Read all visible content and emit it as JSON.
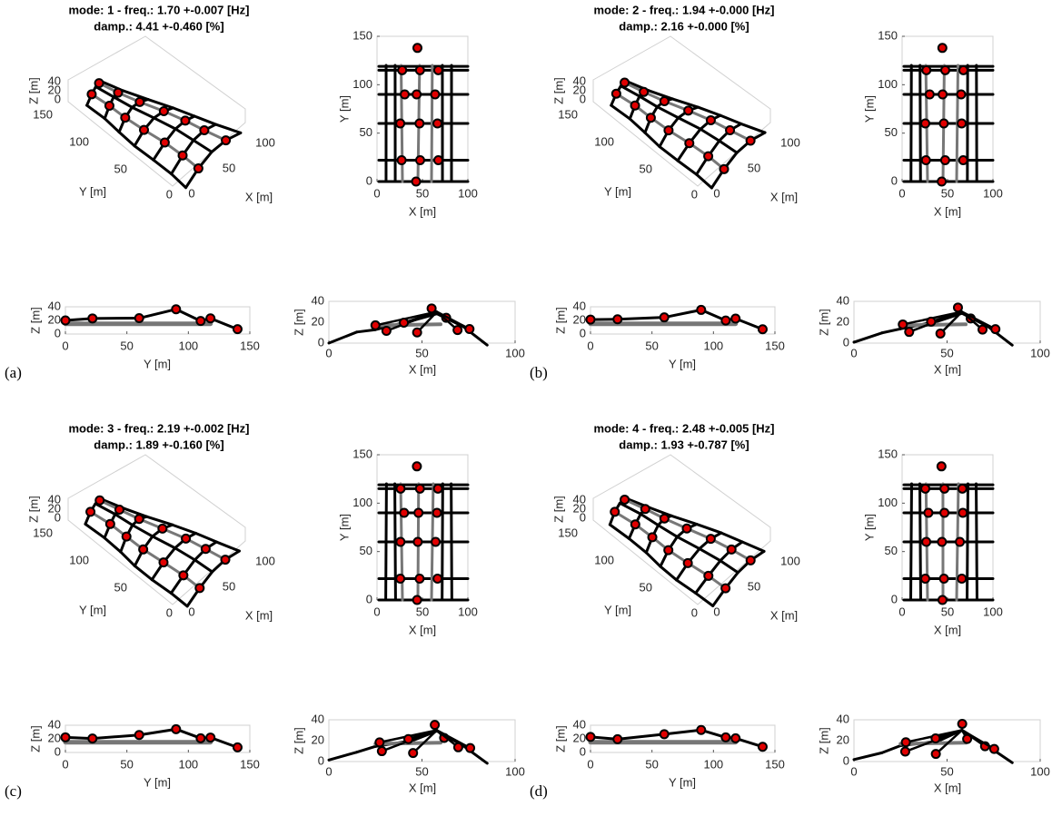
{
  "panels": [
    {
      "label": "(a)",
      "title": [
        "mode: 1 - freq.: 1.70 +-0.007 [Hz]",
        "damp.: 4.41 +-0.460 [%]"
      ],
      "view3d": {
        "xlabel": "X [m]",
        "ylabel": "Y [m]",
        "zlabel": "Z [m]",
        "xticks": [
          0,
          50,
          100
        ],
        "yticks": [
          0,
          50,
          100,
          150
        ],
        "zticks": [
          0,
          20,
          40
        ]
      },
      "plan": {
        "xlabel": "X [m]",
        "ylabel": "Y [m]",
        "xticks": [
          0,
          50,
          100
        ],
        "yticks": [
          0,
          50,
          100,
          150
        ]
      },
      "side_y": {
        "xlabel": "Y [m]",
        "ylabel": "Z [m]",
        "xticks": [
          0,
          50,
          100,
          150
        ],
        "yticks": [
          0,
          20,
          40
        ]
      },
      "side_x": {
        "xlabel": "X [m]",
        "ylabel": "Z [m]",
        "xticks": [
          0,
          50,
          100
        ],
        "yticks": [
          0,
          20,
          40
        ]
      }
    },
    {
      "label": "(b)",
      "title": [
        "mode: 2 - freq.: 1.94 +-0.000 [Hz]",
        "damp.: 2.16 +-0.000 [%]"
      ],
      "view3d": {
        "xlabel": "X [m]",
        "ylabel": "Y [m]",
        "zlabel": "Z [m]",
        "xticks": [
          0,
          50,
          100
        ],
        "yticks": [
          0,
          50,
          100,
          150
        ],
        "zticks": [
          0,
          20,
          40
        ]
      },
      "plan": {
        "xlabel": "X [m]",
        "ylabel": "Y [m]",
        "xticks": [
          0,
          50,
          100
        ],
        "yticks": [
          0,
          50,
          100,
          150
        ]
      },
      "side_y": {
        "xlabel": "Y [m]",
        "ylabel": "Z [m]",
        "xticks": [
          0,
          50,
          100,
          150
        ],
        "yticks": [
          0,
          20,
          40
        ]
      },
      "side_x": {
        "xlabel": "X [m]",
        "ylabel": "Z [m]",
        "xticks": [
          0,
          50,
          100
        ],
        "yticks": [
          0,
          20,
          40
        ]
      }
    },
    {
      "label": "(c)",
      "title": [
        "mode: 3 - freq.: 2.19 +-0.002 [Hz]",
        "damp.: 1.89 +-0.160 [%]"
      ],
      "view3d": {
        "xlabel": "X [m]",
        "ylabel": "Y [m]",
        "zlabel": "Z [m]",
        "xticks": [
          0,
          50,
          100
        ],
        "yticks": [
          0,
          50,
          100,
          150
        ],
        "zticks": [
          0,
          20,
          40
        ]
      },
      "plan": {
        "xlabel": "X [m]",
        "ylabel": "Y [m]",
        "xticks": [
          0,
          50,
          100
        ],
        "yticks": [
          0,
          50,
          100,
          150
        ]
      },
      "side_y": {
        "xlabel": "Y [m]",
        "ylabel": "Z [m]",
        "xticks": [
          0,
          50,
          100,
          150
        ],
        "yticks": [
          0,
          20,
          40
        ]
      },
      "side_x": {
        "xlabel": "X [m]",
        "ylabel": "Z [m]",
        "xticks": [
          0,
          50,
          100
        ],
        "yticks": [
          0,
          20,
          40
        ]
      }
    },
    {
      "label": "(d)",
      "title": [
        "mode: 4 - freq.: 2.48 +-0.005 [Hz]",
        "damp.: 1.93 +-0.787 [%]"
      ],
      "view3d": {
        "xlabel": "X [m]",
        "ylabel": "Y [m]",
        "zlabel": "Z [m]",
        "xticks": [
          0,
          50,
          100
        ],
        "yticks": [
          0,
          50,
          100,
          150
        ],
        "zticks": [
          0,
          20,
          40
        ]
      },
      "plan": {
        "xlabel": "X [m]",
        "ylabel": "Y [m]",
        "xticks": [
          0,
          50,
          100
        ],
        "yticks": [
          0,
          50,
          100,
          150
        ]
      },
      "side_y": {
        "xlabel": "Y [m]",
        "ylabel": "Z [m]",
        "xticks": [
          0,
          50,
          100,
          150
        ],
        "yticks": [
          0,
          20,
          40
        ]
      },
      "side_x": {
        "xlabel": "X [m]",
        "ylabel": "Z [m]",
        "xticks": [
          0,
          50,
          100
        ],
        "yticks": [
          0,
          20,
          40
        ]
      }
    }
  ]
}
